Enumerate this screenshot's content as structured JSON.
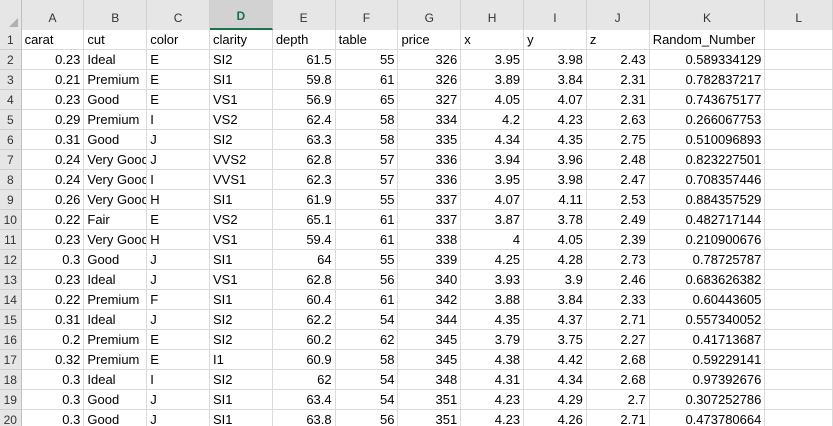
{
  "columns": [
    "A",
    "B",
    "C",
    "D",
    "E",
    "F",
    "G",
    "H",
    "I",
    "J",
    "K",
    "L"
  ],
  "selected_column": "D",
  "rows": [
    {
      "n": "1",
      "cells": [
        "carat",
        "cut",
        "color",
        "clarity",
        "depth",
        "table",
        "price",
        "x",
        "y",
        "z",
        "Random_Number",
        ""
      ]
    },
    {
      "n": "2",
      "cells": [
        "0.23",
        "Ideal",
        "E",
        "SI2",
        "61.5",
        "55",
        "326",
        "3.95",
        "3.98",
        "2.43",
        "0.589334129",
        ""
      ]
    },
    {
      "n": "3",
      "cells": [
        "0.21",
        "Premium",
        "E",
        "SI1",
        "59.8",
        "61",
        "326",
        "3.89",
        "3.84",
        "2.31",
        "0.782837217",
        ""
      ]
    },
    {
      "n": "4",
      "cells": [
        "0.23",
        "Good",
        "E",
        "VS1",
        "56.9",
        "65",
        "327",
        "4.05",
        "4.07",
        "2.31",
        "0.743675177",
        ""
      ]
    },
    {
      "n": "5",
      "cells": [
        "0.29",
        "Premium",
        "I",
        "VS2",
        "62.4",
        "58",
        "334",
        "4.2",
        "4.23",
        "2.63",
        "0.266067753",
        ""
      ]
    },
    {
      "n": "6",
      "cells": [
        "0.31",
        "Good",
        "J",
        "SI2",
        "63.3",
        "58",
        "335",
        "4.34",
        "4.35",
        "2.75",
        "0.510096893",
        ""
      ]
    },
    {
      "n": "7",
      "cells": [
        "0.24",
        "Very Good",
        "J",
        "VVS2",
        "62.8",
        "57",
        "336",
        "3.94",
        "3.96",
        "2.48",
        "0.823227501",
        ""
      ]
    },
    {
      "n": "8",
      "cells": [
        "0.24",
        "Very Good",
        "I",
        "VVS1",
        "62.3",
        "57",
        "336",
        "3.95",
        "3.98",
        "2.47",
        "0.708357446",
        ""
      ]
    },
    {
      "n": "9",
      "cells": [
        "0.26",
        "Very Good",
        "H",
        "SI1",
        "61.9",
        "55",
        "337",
        "4.07",
        "4.11",
        "2.53",
        "0.884357529",
        ""
      ]
    },
    {
      "n": "10",
      "cells": [
        "0.22",
        "Fair",
        "E",
        "VS2",
        "65.1",
        "61",
        "337",
        "3.87",
        "3.78",
        "2.49",
        "0.482717144",
        ""
      ]
    },
    {
      "n": "11",
      "cells": [
        "0.23",
        "Very Good",
        "H",
        "VS1",
        "59.4",
        "61",
        "338",
        "4",
        "4.05",
        "2.39",
        "0.210900676",
        ""
      ]
    },
    {
      "n": "12",
      "cells": [
        "0.3",
        "Good",
        "J",
        "SI1",
        "64",
        "55",
        "339",
        "4.25",
        "4.28",
        "2.73",
        "0.78725787",
        ""
      ]
    },
    {
      "n": "13",
      "cells": [
        "0.23",
        "Ideal",
        "J",
        "VS1",
        "62.8",
        "56",
        "340",
        "3.93",
        "3.9",
        "2.46",
        "0.683626382",
        ""
      ]
    },
    {
      "n": "14",
      "cells": [
        "0.22",
        "Premium",
        "F",
        "SI1",
        "60.4",
        "61",
        "342",
        "3.88",
        "3.84",
        "2.33",
        "0.60443605",
        ""
      ]
    },
    {
      "n": "15",
      "cells": [
        "0.31",
        "Ideal",
        "J",
        "SI2",
        "62.2",
        "54",
        "344",
        "4.35",
        "4.37",
        "2.71",
        "0.557340052",
        ""
      ]
    },
    {
      "n": "16",
      "cells": [
        "0.2",
        "Premium",
        "E",
        "SI2",
        "60.2",
        "62",
        "345",
        "3.79",
        "3.75",
        "2.27",
        "0.41713687",
        ""
      ]
    },
    {
      "n": "17",
      "cells": [
        "0.32",
        "Premium",
        "E",
        "I1",
        "60.9",
        "58",
        "345",
        "4.38",
        "4.42",
        "2.68",
        "0.59229141",
        ""
      ]
    },
    {
      "n": "18",
      "cells": [
        "0.3",
        "Ideal",
        "I",
        "SI2",
        "62",
        "54",
        "348",
        "4.31",
        "4.34",
        "2.68",
        "0.97392676",
        ""
      ]
    },
    {
      "n": "19",
      "cells": [
        "0.3",
        "Good",
        "J",
        "SI1",
        "63.4",
        "54",
        "351",
        "4.23",
        "4.29",
        "2.7",
        "0.307252786",
        ""
      ]
    },
    {
      "n": "20",
      "cells": [
        "0.3",
        "Good",
        "J",
        "SI1",
        "63.8",
        "56",
        "351",
        "4.23",
        "4.26",
        "2.71",
        "0.473780664",
        ""
      ]
    }
  ],
  "colors": {
    "accent": "#217346",
    "header_bg": "#e6e6e6",
    "grid": "#dadada"
  }
}
